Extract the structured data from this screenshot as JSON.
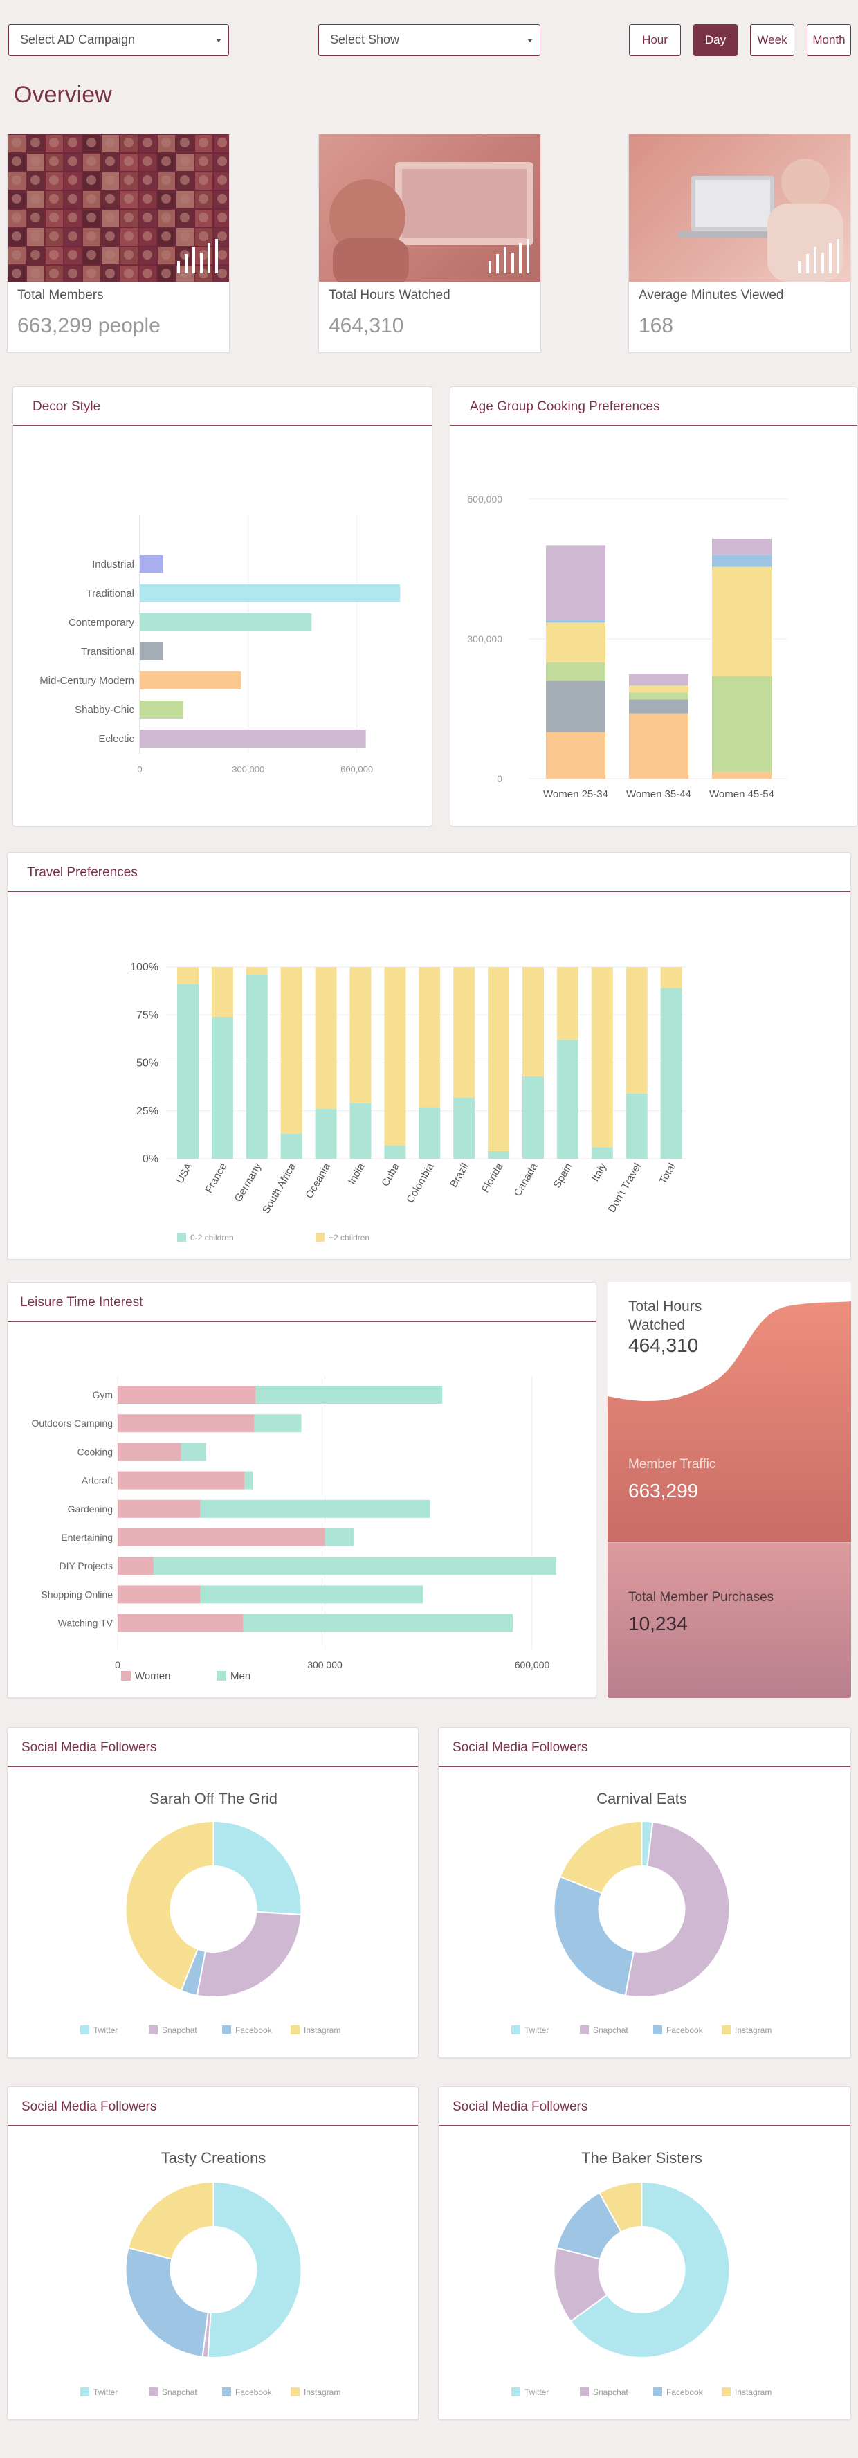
{
  "filters": {
    "campaign": "Select AD Campaign",
    "show": "Select Show",
    "time_buttons": [
      "Hour",
      "Day",
      "Week",
      "Month"
    ],
    "active_time": "Day"
  },
  "page_title": "Overview",
  "stats": [
    {
      "label": "Total Members",
      "value": "663,299 people"
    },
    {
      "label": "Total Hours Watched",
      "value": "464,310"
    },
    {
      "label": "Average Minutes Viewed",
      "value": "168"
    }
  ],
  "decor": {
    "title": "Decor Style",
    "chart_data": {
      "type": "bar",
      "orientation": "horizontal",
      "categories": [
        "Industrial",
        "Traditional",
        "Contemporary",
        "Transitional",
        "Mid-Century Modern",
        "Shabby-Chic",
        "Eclectic"
      ],
      "values": [
        65000,
        720000,
        475000,
        65000,
        280000,
        120000,
        625000
      ],
      "colors": [
        "#a9aeee",
        "#b0e6ee",
        "#ace4d6",
        "#a4acb6",
        "#fbc98f",
        "#c1dc9b",
        "#cfb8d2"
      ],
      "xticks": [
        "0",
        "300,000",
        "600,000"
      ],
      "xlim": [
        0,
        750000
      ]
    }
  },
  "age": {
    "title": "Age Group Cooking Preferences",
    "chart_data": {
      "type": "bar",
      "stacked": true,
      "categories": [
        "Women 25-34",
        "Women 35-44",
        "Women 45-54"
      ],
      "series": [
        {
          "color": "#fbc98f",
          "values": [
            100000,
            140000,
            15000
          ]
        },
        {
          "color": "#c1dc9b",
          "values": [
            0,
            0,
            205000
          ]
        },
        {
          "color": "#a4acb6",
          "values": [
            110000,
            30000,
            0
          ]
        },
        {
          "color": "#c1dc9b",
          "values": [
            40000,
            15000,
            0
          ]
        },
        {
          "color": "#f7df91",
          "values": [
            85000,
            15000,
            235000
          ]
        },
        {
          "color": "#9ec5e4",
          "values": [
            5000,
            0,
            25000
          ]
        },
        {
          "color": "#cfb8d2",
          "values": [
            160000,
            25000,
            35000
          ]
        }
      ],
      "yticks": [
        "0",
        "300,000",
        "600,000"
      ],
      "ylim": [
        0,
        600000
      ]
    }
  },
  "travel": {
    "title": "Travel Preferences",
    "chart_data": {
      "type": "bar",
      "stacked": true,
      "percent": true,
      "categories": [
        "USA",
        "France",
        "Germany",
        "South Africa",
        "Oceania",
        "India",
        "Cuba",
        "Colombia",
        "Brazil",
        "Florida",
        "Canada",
        "Spain",
        "Italy",
        "Don't Travel",
        "Total"
      ],
      "series": [
        {
          "name": "0-2 children",
          "color": "#ace4d6",
          "values": [
            91,
            74,
            96,
            13,
            26,
            29,
            7,
            27,
            32,
            4,
            43,
            62,
            6,
            34,
            89
          ]
        },
        {
          "name": "+2 children",
          "color": "#f7df91",
          "values": [
            9,
            26,
            4,
            87,
            74,
            71,
            93,
            73,
            68,
            96,
            57,
            38,
            94,
            66,
            11
          ]
        }
      ],
      "yticks": [
        "0%",
        "25%",
        "50%",
        "75%",
        "100%"
      ]
    }
  },
  "leisure": {
    "title": "Leisure Time Interest",
    "chart_data": {
      "type": "bar",
      "orientation": "horizontal",
      "stacked": true,
      "categories": [
        "Gym",
        "Outdoors Camping",
        "Cooking",
        "Artcraft",
        "Gardening",
        "Entertaining",
        "DIY Projects",
        "Shopping Online",
        "Watching TV"
      ],
      "series": [
        {
          "name": "Women",
          "color": "#e7b0b6",
          "values": [
            200000,
            198000,
            92000,
            184000,
            120000,
            300000,
            52000,
            120000,
            182000
          ]
        },
        {
          "name": "Men",
          "color": "#ace4d6",
          "values": [
            270000,
            68000,
            36000,
            12000,
            332000,
            42000,
            583000,
            322000,
            390000
          ]
        }
      ],
      "xticks": [
        "0",
        "300,000",
        "600,000"
      ],
      "xlim": [
        0,
        630000
      ]
    }
  },
  "summary": {
    "hours_label": "Total Hours Watched",
    "hours_value": "464,310",
    "traffic_label": "Member Traffic",
    "traffic_value": "663,299",
    "purchases_label": "Total Member Purchases",
    "purchases_value": "10,234"
  },
  "social": {
    "panel_title": "Social Media Followers",
    "legend": [
      "Twitter",
      "Snapchat",
      "Facebook",
      "Instagram"
    ],
    "colors": [
      "#b0e6ee",
      "#cfb8d2",
      "#9ec5e4",
      "#f7df91"
    ],
    "charts": [
      {
        "name": "Sarah Off The Grid",
        "chart_data": {
          "type": "pie",
          "labels": [
            "Twitter",
            "Snapchat",
            "Facebook",
            "Instagram"
          ],
          "values": [
            26,
            27,
            3,
            44
          ]
        }
      },
      {
        "name": "Carnival Eats",
        "chart_data": {
          "type": "pie",
          "labels": [
            "Twitter",
            "Snapchat",
            "Facebook",
            "Instagram"
          ],
          "values": [
            2,
            51,
            28,
            19
          ]
        }
      },
      {
        "name": "Tasty Creations",
        "chart_data": {
          "type": "pie",
          "labels": [
            "Twitter",
            "Snapchat",
            "Facebook",
            "Instagram"
          ],
          "values": [
            51,
            1,
            27,
            21
          ]
        }
      },
      {
        "name": "The Baker Sisters",
        "chart_data": {
          "type": "pie",
          "labels": [
            "Twitter",
            "Snapchat",
            "Facebook",
            "Instagram"
          ],
          "values": [
            65,
            14,
            13,
            8
          ]
        }
      }
    ]
  }
}
